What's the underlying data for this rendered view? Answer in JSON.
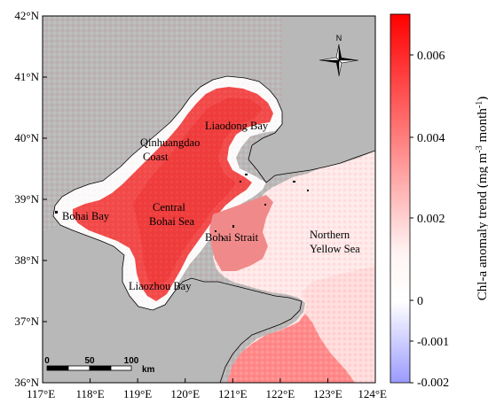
{
  "map": {
    "lon_labels": [
      "117°E",
      "118°E",
      "119°E",
      "120°E",
      "121°E",
      "122°E",
      "123°E",
      "124°E"
    ],
    "lat_labels": [
      "36°N",
      "37°N",
      "38°N",
      "39°N",
      "40°N",
      "41°N",
      "42°N"
    ],
    "places": {
      "liaodong_bay": "Liaodong Bay",
      "qinhuangdao_1": "Qinhuangdao",
      "qinhuangdao_2": "Coast",
      "central_1": "Central",
      "central_2": "Bohai Sea",
      "bohai_bay": "Bohai Bay",
      "bohai_strait": "Bohai Strait",
      "yellow_1": "Northern",
      "yellow_2": "Yellow Sea",
      "liaozhou_bay": "Liaozhou Bay"
    },
    "north_arrow": "N",
    "scale_bar": {
      "ticks": [
        "0",
        "50",
        "100"
      ],
      "unit": "km"
    },
    "colors": {
      "land": "#b8b8b8",
      "high": "#ff0000",
      "low": "#8f8fff",
      "zero": "#ffffff"
    }
  },
  "colorbar": {
    "ticks": [
      "0.006",
      "0.004",
      "0.002",
      "0",
      "-0.001",
      "-0.002"
    ],
    "title_main": "Chl-a anomaly trend (mg m",
    "title_sup1": "-3",
    "title_mid": " month",
    "title_sup2": "-1",
    "title_end": ")"
  }
}
